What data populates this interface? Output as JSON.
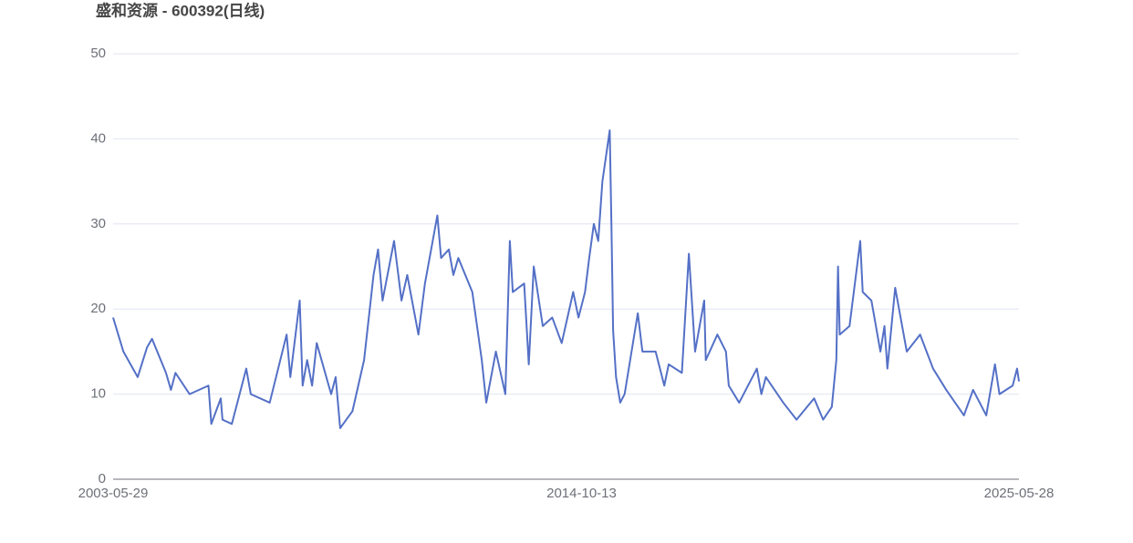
{
  "chart_data": {
    "type": "line",
    "title": "盛和资源 - 600392(日线)",
    "x": [
      "2003-05-29",
      "2003-08-28",
      "2004-01-02",
      "2004-03-25",
      "2004-05-08",
      "2004-09-09",
      "2004-10-23",
      "2004-12-02",
      "2005-04-06",
      "2005-09-21",
      "2005-10-16",
      "2006-01-08",
      "2006-01-23",
      "2006-04-16",
      "2006-08-22",
      "2006-10-01",
      "2007-03-18",
      "2007-08-15",
      "2007-09-17",
      "2007-12-09",
      "2008-01-04",
      "2008-02-13",
      "2008-03-28",
      "2008-05-08",
      "2008-09-13",
      "2008-10-23",
      "2008-12-02",
      "2009-03-21",
      "2009-07-02",
      "2009-09-24",
      "2009-11-03",
      "2009-12-13",
      "2010-03-25",
      "2010-05-30",
      "2010-07-20",
      "2010-10-27",
      "2010-12-24",
      "2011-04-13",
      "2011-05-16",
      "2011-07-24",
      "2011-09-02",
      "2011-10-16",
      "2012-02-17",
      "2012-05-11",
      "2012-06-20",
      "2012-09-13",
      "2012-12-06",
      "2013-01-15",
      "2013-02-10",
      "2013-05-22",
      "2013-07-02",
      "2013-08-15",
      "2013-11-03",
      "2014-01-26",
      "2014-04-20",
      "2014-07-31",
      "2014-09-16",
      "2014-11-13",
      "2014-12-20",
      "2015-01-30",
      "2015-03-10",
      "2015-04-16",
      "2015-06-20",
      "2015-07-05",
      "2015-07-20",
      "2015-08-15",
      "2015-09-21",
      "2015-10-30",
      "2016-02-24",
      "2016-04-05",
      "2016-07-31",
      "2016-10-16",
      "2016-11-24",
      "2017-03-21",
      "2017-05-22",
      "2017-07-16",
      "2017-10-05",
      "2017-10-19",
      "2018-01-30",
      "2018-04-16",
      "2018-05-11",
      "2018-08-11",
      "2019-01-15",
      "2019-02-24",
      "2019-04-05",
      "2019-09-06",
      "2020-01-02",
      "2020-06-06",
      "2020-08-25",
      "2020-11-10",
      "2020-12-20",
      "2021-01-04",
      "2021-01-19",
      "2021-04-16",
      "2021-07-20",
      "2021-08-11",
      "2021-10-27",
      "2022-01-15",
      "2022-02-20",
      "2022-03-18",
      "2022-05-26",
      "2022-09-06",
      "2023-01-02",
      "2023-04-27",
      "2023-08-22",
      "2024-01-26",
      "2024-04-16",
      "2024-08-11",
      "2024-10-27",
      "2024-12-06",
      "2025-04-02",
      "2025-05-11",
      "2025-05-28"
    ],
    "values": [
      19,
      15,
      12,
      15.5,
      16.5,
      12.5,
      10.5,
      12.5,
      10,
      11,
      6.5,
      9.5,
      7,
      6.5,
      13,
      10,
      9,
      17,
      12,
      21,
      11,
      14,
      11,
      16,
      10,
      12,
      6,
      8,
      14,
      24,
      27,
      21,
      28,
      21,
      24,
      17,
      23,
      31,
      26,
      27,
      24,
      26,
      22,
      14,
      9,
      15,
      10,
      28,
      22,
      23,
      13.5,
      25,
      18,
      19,
      16,
      22,
      19,
      22,
      26,
      30,
      28,
      35,
      41,
      30,
      17.5,
      12,
      9,
      10,
      19.5,
      15,
      15,
      11,
      13.5,
      12.5,
      26.5,
      15,
      21,
      14,
      17,
      15,
      11,
      9,
      13,
      10,
      12,
      9,
      7,
      9.5,
      7,
      8.5,
      14,
      25,
      17,
      18,
      28,
      22,
      21,
      15,
      18,
      13,
      22.5,
      15,
      17,
      13,
      10.5,
      7.5,
      10.5,
      7.5,
      13.5,
      10,
      11,
      13,
      11.5
    ],
    "color": "#5470c6",
    "xlim": [
      "2003-05-29",
      "2025-05-28"
    ],
    "xticks": [
      "2003-05-29",
      "2014-10-13",
      "2025-05-28"
    ],
    "ylim": [
      0,
      50
    ],
    "yticks": [
      0,
      10,
      20,
      30,
      40,
      50
    ],
    "grid": true
  }
}
